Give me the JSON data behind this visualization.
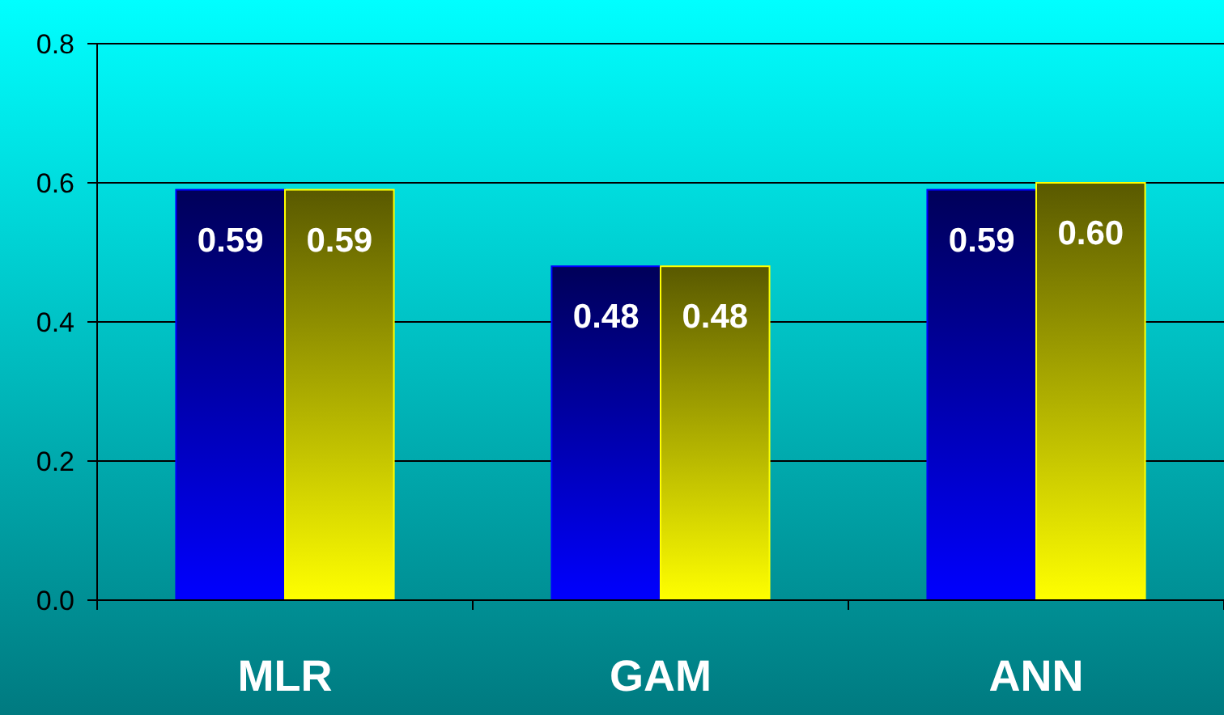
{
  "chart_data": {
    "type": "bar",
    "categories": [
      "MLR",
      "GAM",
      "ANN"
    ],
    "series": [
      {
        "color": "#0000ff",
        "values": [
          0.59,
          0.48,
          0.59
        ],
        "value_labels": [
          "0.59",
          "0.48",
          "0.59"
        ]
      },
      {
        "color": "#ffff00",
        "values": [
          0.59,
          0.48,
          0.6
        ],
        "value_labels": [
          "0.59",
          "0.48",
          "0.60"
        ]
      }
    ],
    "ylim": [
      0,
      0.8
    ],
    "yticks": [
      {
        "value": 0,
        "label": "0.0"
      },
      {
        "value": 0.2,
        "label": "0.2"
      },
      {
        "value": 0.4,
        "label": "0.4"
      },
      {
        "value": 0.6,
        "label": "0.6"
      },
      {
        "value": 0.8,
        "label": "0.8"
      }
    ],
    "grid": "y"
  }
}
